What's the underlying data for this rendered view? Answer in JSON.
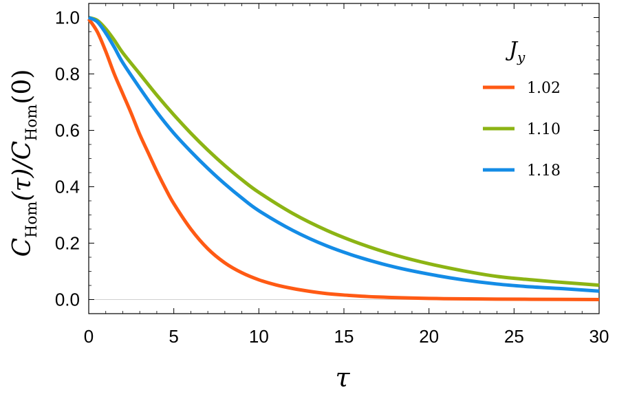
{
  "chart_data": {
    "type": "line",
    "xlabel": "τ",
    "ylabel": {
      "main1": "C",
      "sub1": "Hom",
      "arg1": "(τ)",
      "sep": "/",
      "main2": "C",
      "sub2": "Hom",
      "arg2": "(0)"
    },
    "xlim": [
      0,
      30
    ],
    "ylim": [
      -0.05,
      1.05
    ],
    "xticks": [
      0,
      5,
      10,
      15,
      20,
      25,
      30
    ],
    "yticks": [
      0.0,
      0.2,
      0.4,
      0.6,
      0.8,
      1.0
    ],
    "xtick_labels": [
      "0",
      "5",
      "10",
      "15",
      "20",
      "25",
      "30"
    ],
    "ytick_labels": [
      "0.0",
      "0.2",
      "0.4",
      "0.6",
      "0.8",
      "1.0"
    ],
    "grid": false,
    "legend": {
      "title": "J",
      "title_sub": "y",
      "position": "top-right"
    },
    "series": [
      {
        "name": "1.02",
        "color": "#FF5A14",
        "x": [
          0,
          0.5,
          1,
          1.5,
          2,
          2.5,
          3,
          3.5,
          4,
          4.5,
          5,
          6,
          7,
          8,
          9,
          10,
          11,
          12,
          13,
          14,
          15,
          17,
          20,
          23,
          26,
          30
        ],
        "y": [
          0.995,
          0.95,
          0.88,
          0.8,
          0.73,
          0.66,
          0.585,
          0.52,
          0.455,
          0.395,
          0.34,
          0.25,
          0.18,
          0.13,
          0.095,
          0.07,
          0.052,
          0.039,
          0.029,
          0.021,
          0.016,
          0.009,
          0.004,
          0.002,
          0.001,
          0.0
        ]
      },
      {
        "name": "1.10",
        "color": "#8CB414",
        "x": [
          0,
          0.5,
          1,
          1.5,
          2,
          3,
          4,
          5,
          6,
          7,
          8,
          9,
          10,
          12,
          14,
          16,
          18,
          20,
          22,
          24,
          26,
          28,
          30
        ],
        "y": [
          1.0,
          0.99,
          0.96,
          0.92,
          0.875,
          0.8,
          0.725,
          0.655,
          0.59,
          0.53,
          0.475,
          0.425,
          0.38,
          0.305,
          0.245,
          0.197,
          0.158,
          0.127,
          0.102,
          0.082,
          0.07,
          0.06,
          0.051
        ]
      },
      {
        "name": "1.18",
        "color": "#148CE6",
        "x": [
          0,
          0.5,
          1,
          1.5,
          2,
          3,
          4,
          5,
          6,
          7,
          8,
          9,
          10,
          12,
          14,
          16,
          18,
          20,
          22,
          24,
          26,
          28,
          30
        ],
        "y": [
          1.0,
          0.985,
          0.945,
          0.895,
          0.84,
          0.75,
          0.665,
          0.59,
          0.525,
          0.465,
          0.41,
          0.36,
          0.315,
          0.245,
          0.19,
          0.148,
          0.115,
          0.09,
          0.07,
          0.055,
          0.045,
          0.038,
          0.03
        ]
      }
    ]
  }
}
